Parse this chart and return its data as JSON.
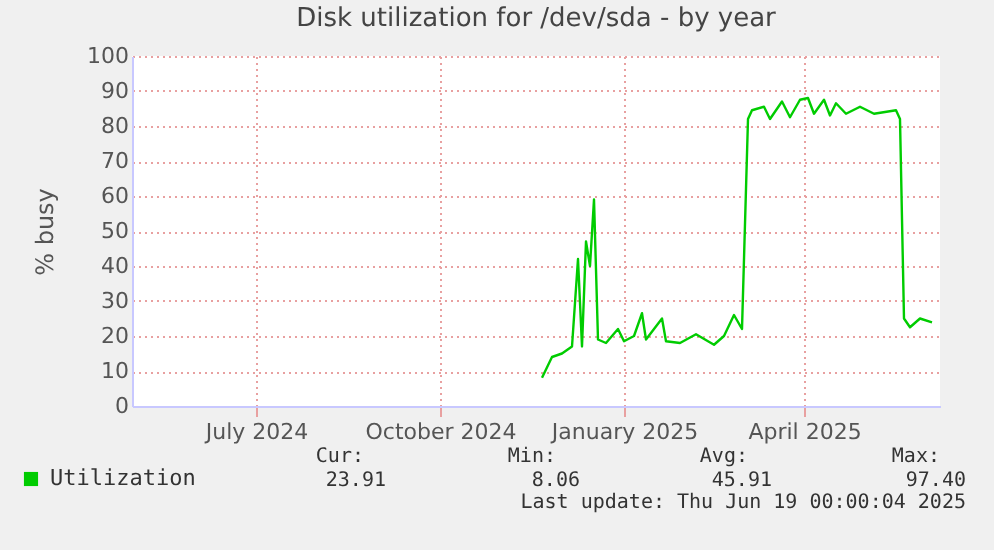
{
  "chart_data": {
    "type": "line",
    "title": "Disk utilization for /dev/sda - by year",
    "ylabel": "% busy",
    "xlim": [
      "2024-05-15",
      "2025-06-23"
    ],
    "xticks": [
      {
        "value": "2024-07-16",
        "label": "July 2024"
      },
      {
        "value": "2024-10-16",
        "label": "October 2024"
      },
      {
        "value": "2025-01-16",
        "label": "January 2025"
      },
      {
        "value": "2025-04-16",
        "label": "April 2025"
      }
    ],
    "ylim": [
      0,
      100
    ],
    "yticks": [
      0,
      10,
      20,
      30,
      40,
      50,
      60,
      70,
      80,
      90,
      100
    ],
    "grid": true,
    "legend": "bottom left",
    "marker": "none",
    "line_style": "solid",
    "x": [
      "2024-12-06",
      "2024-12-11",
      "2024-12-16",
      "2024-12-21",
      "2024-12-24",
      "2024-12-26",
      "2024-12-28",
      "2024-12-30",
      "2025-01-01",
      "2025-01-03",
      "2025-01-07",
      "2025-01-13",
      "2025-01-16",
      "2025-01-21",
      "2025-01-25",
      "2025-01-27",
      "2025-02-04",
      "2025-02-06",
      "2025-02-13",
      "2025-02-21",
      "2025-03-02",
      "2025-03-07",
      "2025-03-12",
      "2025-03-16",
      "2025-03-19",
      "2025-03-21",
      "2025-03-27",
      "2025-03-30",
      "2025-04-05",
      "2025-04-09",
      "2025-04-14",
      "2025-04-18",
      "2025-04-21",
      "2025-04-26",
      "2025-04-29",
      "2025-05-02",
      "2025-05-07",
      "2025-05-14",
      "2025-05-21",
      "2025-06-01",
      "2025-06-03",
      "2025-06-05",
      "2025-06-08",
      "2025-06-13",
      "2025-06-19"
    ],
    "series": [
      {
        "name": "Utilization",
        "color": "#00cc00",
        "values": [
          8.1,
          14,
          15,
          17,
          42,
          17,
          47,
          40,
          59,
          19,
          18,
          22,
          18.5,
          20,
          26.5,
          19,
          25,
          18.5,
          18,
          20.5,
          17.5,
          20,
          26,
          22,
          82,
          84.5,
          85.5,
          82,
          87,
          82.5,
          87.5,
          88,
          83.5,
          87.5,
          83,
          86.5,
          83.5,
          85.5,
          83.5,
          84.5,
          82,
          25,
          22.5,
          25,
          23.9
        ]
      }
    ],
    "annotations": [
      "Cur:",
      "Min:",
      "Avg:",
      "Max:",
      "23.91",
      "8.06",
      "45.91",
      "97.40",
      "Last update: Thu Jun 19 00:00:04 2025"
    ]
  }
}
